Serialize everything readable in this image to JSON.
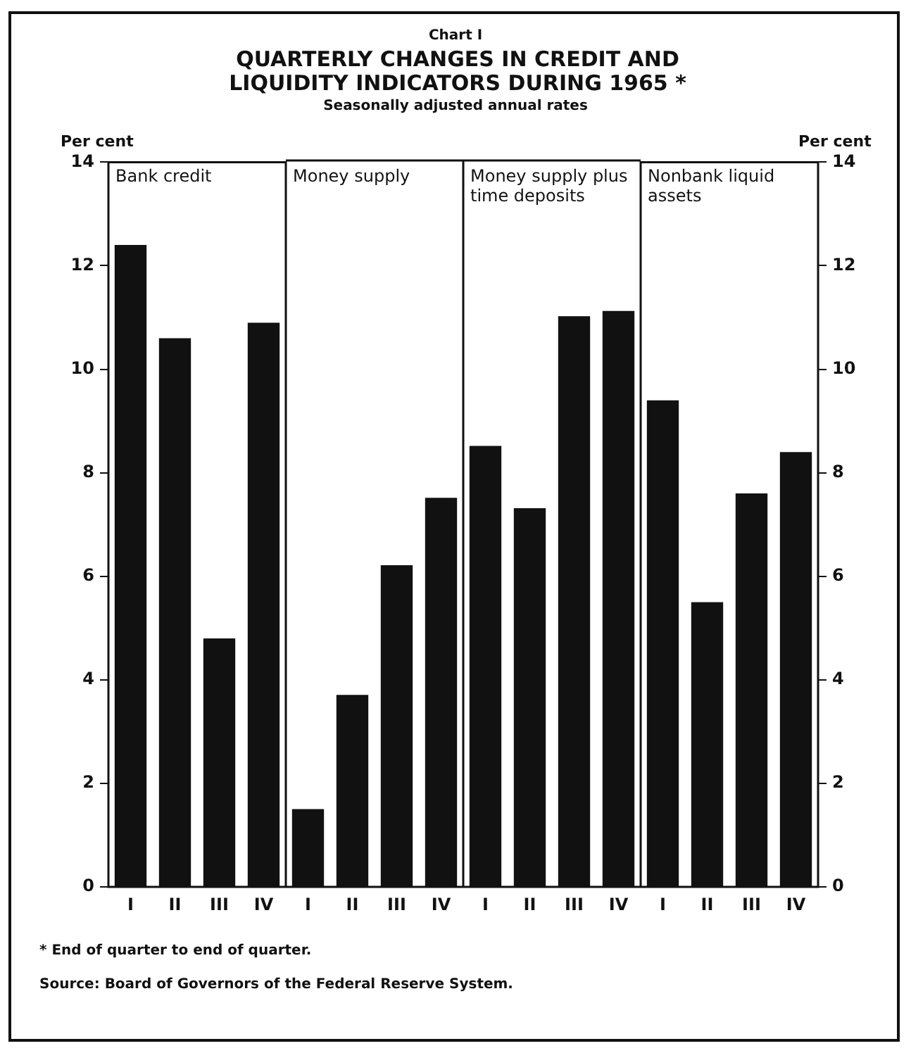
{
  "chart_data": [
    {
      "type": "bar",
      "title": "Bank credit",
      "ylabel": "Per cent",
      "categories": [
        "I",
        "II",
        "III",
        "IV"
      ],
      "values": [
        12.4,
        10.6,
        4.8,
        10.9
      ],
      "color": "#111111",
      "ylim": [
        0,
        14
      ],
      "yticks": [
        0,
        2,
        4,
        6,
        8,
        10,
        12,
        14
      ],
      "annotations": [
        "Chart I",
        "QUARTERLY CHANGES IN CREDIT AND LIQUIDITY INDICATORS DURING 1965 *",
        "Seasonally adjusted annual rates",
        "* End of quarter to end of quarter.",
        "Source: Board of Governors of the Federal Reserve System."
      ]
    },
    {
      "type": "bar",
      "title": "Money supply",
      "categories": [
        "I",
        "II",
        "III",
        "IV"
      ],
      "values": [
        1.5,
        3.7,
        6.2,
        7.5
      ],
      "color": "#111111",
      "ylim": [
        0,
        14
      ],
      "yticks": [
        0,
        2,
        4,
        6,
        8,
        10,
        12,
        14
      ],
      "tick_labels": "x"
    },
    {
      "type": "bar",
      "title": "Money supply plus time deposits",
      "categories": [
        "I",
        "II",
        "III",
        "IV"
      ],
      "values": [
        8.5,
        7.3,
        11.0,
        11.1
      ],
      "color": "#111111",
      "ylim": [
        0,
        14
      ],
      "yticks": [
        0,
        2,
        4,
        6,
        8,
        10,
        12,
        14
      ],
      "tick_labels": "x"
    },
    {
      "type": "bar",
      "title": "Nonbank liquid assets",
      "y2label": "Per cent",
      "categories": [
        "I",
        "II",
        "III",
        "IV"
      ],
      "series": [
        {
          "color": "#111111",
          "values": [
            9.4,
            5.5,
            7.6,
            8.4
          ],
          "axis": "y2"
        }
      ],
      "y2lim": [
        0,
        14
      ],
      "y2ticks": [
        0,
        2,
        4,
        6,
        8,
        10,
        12,
        14
      ]
    }
  ]
}
